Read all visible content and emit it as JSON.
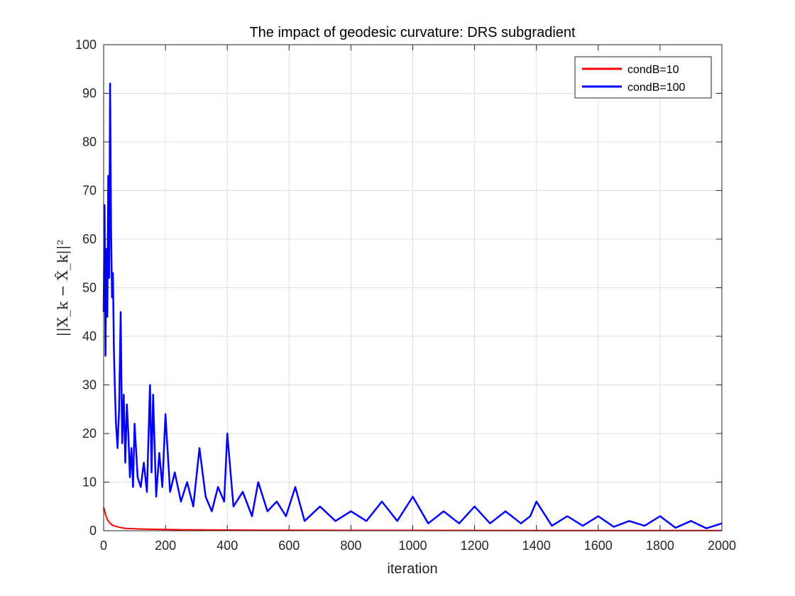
{
  "chart_data": {
    "type": "line",
    "title": "The impact of geodesic curvature: DRS subgradient",
    "xlabel": "iteration",
    "ylabel": "||X_k − X̂_k||²",
    "xlim": [
      0,
      2000
    ],
    "ylim": [
      0,
      100
    ],
    "xticks": [
      0,
      200,
      400,
      600,
      800,
      1000,
      1200,
      1400,
      1600,
      1800,
      2000
    ],
    "yticks": [
      0,
      10,
      20,
      30,
      40,
      50,
      60,
      70,
      80,
      90,
      100
    ],
    "grid": true,
    "legend_position": "top-right",
    "series": [
      {
        "name": "condB=10",
        "color": "#ff0000",
        "x": [
          0,
          2,
          4,
          6,
          8,
          10,
          12,
          15,
          20,
          25,
          30,
          40,
          50,
          60,
          70,
          80,
          100,
          120,
          150,
          200,
          250,
          300,
          400,
          500,
          600,
          800,
          1000,
          1200,
          1400,
          1600,
          1800,
          2000
        ],
        "y": [
          4.8,
          4.5,
          3.9,
          3.4,
          3.0,
          2.7,
          2.3,
          2.0,
          1.6,
          1.3,
          1.1,
          0.9,
          0.7,
          0.6,
          0.5,
          0.45,
          0.4,
          0.35,
          0.3,
          0.25,
          0.2,
          0.18,
          0.15,
          0.12,
          0.1,
          0.08,
          0.07,
          0.06,
          0.05,
          0.05,
          0.05,
          0.05
        ]
      },
      {
        "name": "condB=100",
        "color": "#0000ff",
        "x": [
          0,
          3,
          6,
          9,
          12,
          15,
          18,
          21,
          24,
          27,
          30,
          33,
          36,
          40,
          45,
          50,
          55,
          60,
          65,
          70,
          75,
          80,
          85,
          90,
          95,
          100,
          110,
          120,
          130,
          140,
          150,
          155,
          160,
          170,
          180,
          190,
          200,
          215,
          230,
          250,
          270,
          290,
          310,
          330,
          350,
          370,
          390,
          400,
          420,
          450,
          480,
          500,
          530,
          560,
          590,
          620,
          650,
          700,
          750,
          800,
          850,
          900,
          950,
          1000,
          1050,
          1100,
          1150,
          1200,
          1250,
          1300,
          1350,
          1380,
          1400,
          1450,
          1500,
          1550,
          1600,
          1650,
          1700,
          1750,
          1800,
          1850,
          1900,
          1950,
          2000
        ],
        "y": [
          45,
          67,
          36,
          58,
          44,
          73,
          52,
          92,
          62,
          48,
          53,
          38,
          30,
          22,
          17,
          25,
          45,
          18,
          28,
          14,
          26,
          20,
          11,
          17,
          9,
          22,
          11,
          9,
          14,
          8,
          30,
          12,
          28,
          7,
          16,
          9,
          24,
          8,
          12,
          6,
          10,
          5,
          17,
          7,
          4,
          9,
          6,
          20,
          5,
          8,
          3,
          10,
          4,
          6,
          3,
          9,
          2,
          5,
          2,
          4,
          2,
          6,
          2,
          7,
          1.5,
          4,
          1.5,
          5,
          1.5,
          4,
          1.5,
          3,
          6,
          1,
          3,
          1,
          3,
          0.8,
          2,
          1,
          3,
          0.6,
          2,
          0.5,
          1.5
        ]
      }
    ]
  }
}
